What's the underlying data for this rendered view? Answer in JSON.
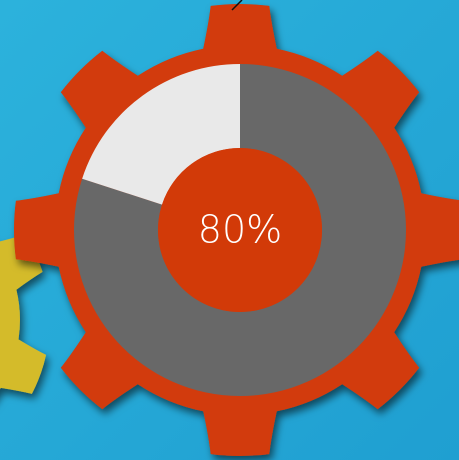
{
  "chart_data": {
    "type": "donut",
    "values": [
      80,
      20
    ],
    "value_labels": [
      "80%",
      null
    ],
    "colors": [
      "#686868",
      "#e9e9e9"
    ],
    "hole_color": "#d23a08"
  }
}
